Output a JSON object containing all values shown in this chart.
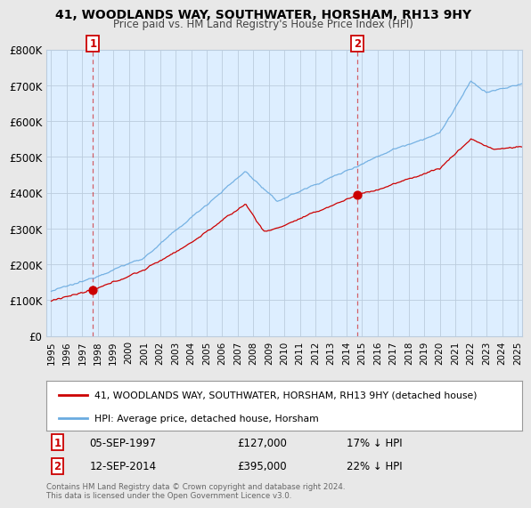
{
  "title": "41, WOODLANDS WAY, SOUTHWATER, HORSHAM, RH13 9HY",
  "subtitle": "Price paid vs. HM Land Registry's House Price Index (HPI)",
  "legend_line1": "41, WOODLANDS WAY, SOUTHWATER, HORSHAM, RH13 9HY (detached house)",
  "legend_line2": "HPI: Average price, detached house, Horsham",
  "annotation1_date": "05-SEP-1997",
  "annotation1_price": "£127,000",
  "annotation1_hpi": "17% ↓ HPI",
  "annotation2_date": "12-SEP-2014",
  "annotation2_price": "£395,000",
  "annotation2_hpi": "22% ↓ HPI",
  "footer": "Contains HM Land Registry data © Crown copyright and database right 2024.\nThis data is licensed under the Open Government Licence v3.0.",
  "hpi_color": "#6aabe0",
  "price_color": "#cc0000",
  "background_color": "#e8e8e8",
  "plot_bg_color": "#ddeeff",
  "grid_color": "#bbccdd",
  "ylim": [
    0,
    800000
  ],
  "yticks": [
    0,
    100000,
    200000,
    300000,
    400000,
    500000,
    600000,
    700000,
    800000
  ],
  "ytick_labels": [
    "£0",
    "£100K",
    "£200K",
    "£300K",
    "£400K",
    "£500K",
    "£600K",
    "£700K",
    "£800K"
  ],
  "sale1_x": 1997.69,
  "sale1_y": 127000,
  "sale2_x": 2014.69,
  "sale2_y": 395000,
  "xmin": 1994.7,
  "xmax": 2025.3,
  "xticks": [
    1995,
    1996,
    1997,
    1998,
    1999,
    2000,
    2001,
    2002,
    2003,
    2004,
    2005,
    2006,
    2007,
    2008,
    2009,
    2010,
    2011,
    2012,
    2013,
    2014,
    2015,
    2016,
    2017,
    2018,
    2019,
    2020,
    2021,
    2022,
    2023,
    2024,
    2025
  ]
}
